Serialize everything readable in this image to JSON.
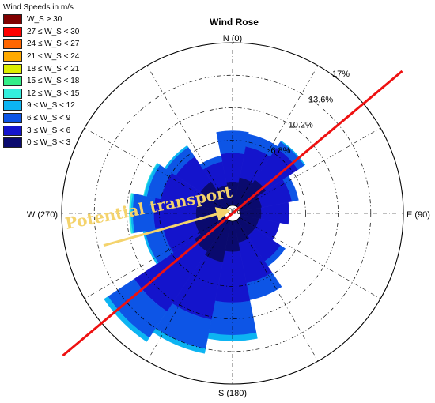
{
  "chart_data": {
    "type": "wind_rose",
    "title": "Wind Rose",
    "legend_title": "Wind Speeds in m/s",
    "direction_labels": {
      "north": "N (0)",
      "east": "E (90)",
      "south": "S (180)",
      "west": "W (270)"
    },
    "radial_labels": [
      "0%",
      "6.8%",
      "10.2%",
      "13.6%",
      "17%"
    ],
    "radial_values": [
      0,
      6.8,
      10.2,
      13.6,
      17
    ],
    "speed_bins": [
      {
        "label": "W_S > 30",
        "color": "#800000"
      },
      {
        "label": "27 ≤ W_S < 30",
        "color": "#ff0000"
      },
      {
        "label": "24 ≤ W_S < 27",
        "color": "#ff6600"
      },
      {
        "label": "21 ≤ W_S < 24",
        "color": "#ffaa00"
      },
      {
        "label": "18 ≤ W_S < 21",
        "color": "#ddee00"
      },
      {
        "label": "15 ≤ W_S < 18",
        "color": "#33ee88"
      },
      {
        "label": "12 ≤ W_S < 15",
        "color": "#33eedd"
      },
      {
        "label": "9 ≤ W_S < 12",
        "color": "#0cb4f2"
      },
      {
        "label": "6 ≤ W_S < 9",
        "color": "#0d55e6"
      },
      {
        "label": "3 ≤ W_S < 6",
        "color": "#1414cc"
      },
      {
        "label": "0 ≤ W_S < 3",
        "color": "#0a0a6e"
      }
    ],
    "sectors": [
      {
        "direction": 0,
        "cumulative": [
          2.5,
          5.5,
          7.8
        ]
      },
      {
        "direction": 22.5,
        "cumulative": [
          3.0,
          6.3,
          7.6
        ]
      },
      {
        "direction": 45,
        "cumulative": [
          3.4,
          7.4,
          8.2,
          8.3
        ]
      },
      {
        "direction": 67.5,
        "cumulative": [
          2.3,
          5.5,
          6.2
        ]
      },
      {
        "direction": 90,
        "cumulative": [
          2.2,
          5.1
        ]
      },
      {
        "direction": 112.5,
        "cumulative": [
          2.0,
          4.2
        ]
      },
      {
        "direction": 135,
        "cumulative": [
          2.0,
          5.2,
          5.8
        ]
      },
      {
        "direction": 157.5,
        "cumulative": [
          2.3,
          6.6,
          8.4
        ]
      },
      {
        "direction": 180,
        "cumulative": [
          3.2,
          8.5,
          11.9,
          12.5
        ]
      },
      {
        "direction": 202.5,
        "cumulative": [
          4.4,
          10.5,
          13.6,
          14.1
        ]
      },
      {
        "direction": 225,
        "cumulative": [
          4.0,
          11.5,
          14.8,
          15.3
        ]
      },
      {
        "direction": 247.5,
        "cumulative": [
          3.2,
          6.6,
          8.5,
          8.7
        ]
      },
      {
        "direction": 270,
        "cumulative": [
          3.0,
          7.4,
          9.6,
          9.8,
          9.95
        ]
      },
      {
        "direction": 292.5,
        "cumulative": [
          3.0,
          6.8,
          8.3,
          8.6,
          8.65
        ]
      },
      {
        "direction": 315,
        "cumulative": [
          3.2,
          6.3,
          7.5,
          7.7
        ]
      },
      {
        "direction": 337.5,
        "cumulative": [
          2.2,
          4.7,
          5.3
        ]
      }
    ],
    "annotations": {
      "transport_text": "Potential transport",
      "transport_line_direction_deg": 50,
      "transport_arrow_from_deg": 256
    }
  }
}
